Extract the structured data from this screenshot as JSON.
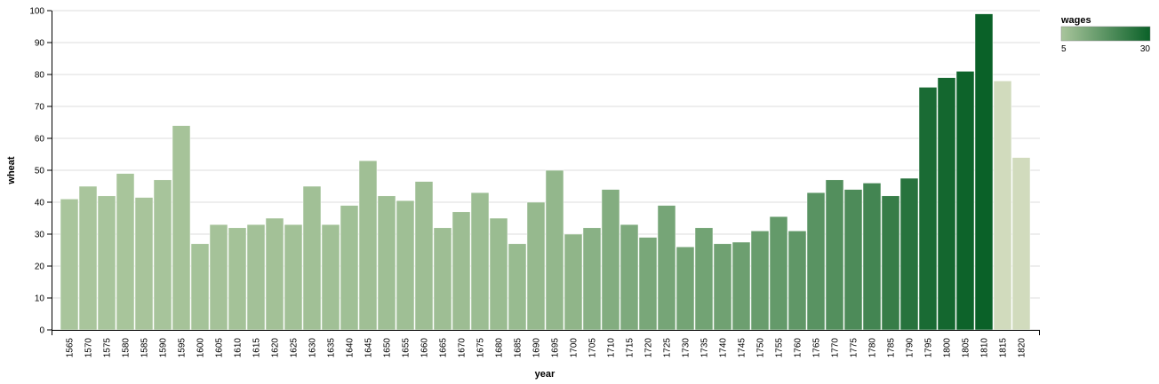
{
  "chart_data": {
    "type": "bar",
    "xlabel": "year",
    "ylabel": "wheat",
    "ylim": [
      0,
      100
    ],
    "y_ticks": [
      0,
      10,
      20,
      30,
      40,
      50,
      60,
      70,
      80,
      90,
      100
    ],
    "grid": true,
    "legend": {
      "title": "wages",
      "min_label": "5",
      "max_label": "30",
      "domain": [
        5,
        30
      ],
      "color_low": "#a9c59c",
      "color_high": "#0a6128",
      "placement": "top-right"
    },
    "missing_wages_color": "#d1dbbd",
    "categories": [
      "1565",
      "1570",
      "1575",
      "1580",
      "1585",
      "1590",
      "1595",
      "1600",
      "1605",
      "1610",
      "1615",
      "1620",
      "1625",
      "1630",
      "1635",
      "1640",
      "1645",
      "1650",
      "1655",
      "1660",
      "1665",
      "1670",
      "1675",
      "1680",
      "1685",
      "1690",
      "1695",
      "1700",
      "1705",
      "1710",
      "1715",
      "1720",
      "1725",
      "1730",
      "1735",
      "1740",
      "1745",
      "1750",
      "1755",
      "1760",
      "1765",
      "1770",
      "1775",
      "1780",
      "1785",
      "1790",
      "1795",
      "1800",
      "1805",
      "1810",
      "1815",
      "1820"
    ],
    "wheat": [
      41,
      45,
      42,
      49,
      41.5,
      47,
      64,
      27,
      33,
      32,
      33,
      35,
      33,
      45,
      33,
      39,
      53,
      42,
      40.5,
      46.5,
      32,
      37,
      43,
      35,
      27,
      40,
      50,
      30,
      32,
      44,
      33,
      29,
      39,
      26,
      32,
      27,
      27.5,
      31,
      35.5,
      31,
      43,
      47,
      44,
      46,
      42,
      47.5,
      76,
      79,
      81,
      99,
      78,
      54
    ],
    "wages": [
      5,
      5.05,
      5.08,
      5.12,
      5.15,
      5.25,
      5.54,
      5.61,
      5.69,
      5.78,
      5.94,
      6.01,
      6.12,
      6.22,
      6.3,
      6.37,
      6.45,
      6.5,
      6.6,
      6.75,
      6.8,
      6.9,
      7,
      7.3,
      7.6,
      8,
      8.5,
      9,
      10,
      11,
      11.75,
      12.5,
      13,
      13.3,
      13.6,
      14,
      14.5,
      15.1,
      15.8,
      16.5,
      17.6,
      18.5,
      19.5,
      21,
      23,
      25.5,
      27.5,
      28.5,
      29.5,
      30,
      null,
      null
    ]
  }
}
